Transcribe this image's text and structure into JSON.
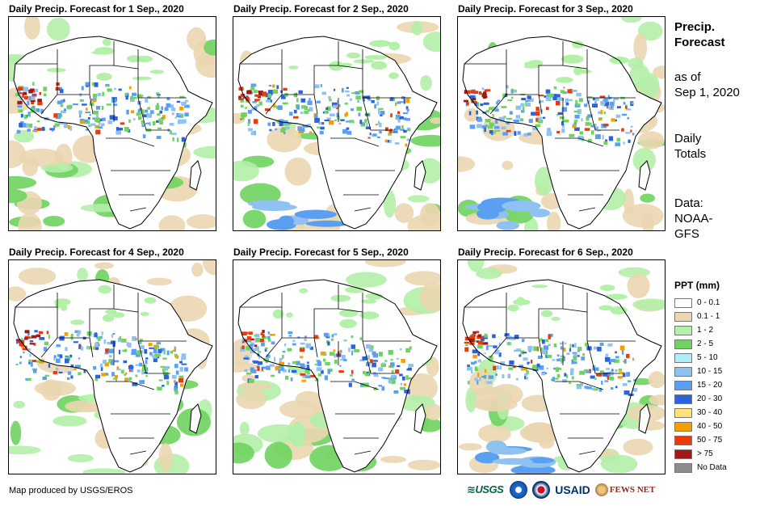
{
  "panels": [
    {
      "title": "Daily Precip. Forecast for 1 Sep., 2020"
    },
    {
      "title": "Daily Precip. Forecast for 2 Sep., 2020"
    },
    {
      "title": "Daily Precip. Forecast for 3 Sep., 2020"
    },
    {
      "title": "Daily Precip. Forecast for 4 Sep., 2020"
    },
    {
      "title": "Daily Precip. Forecast for 5 Sep., 2020"
    },
    {
      "title": "Daily Precip. Forecast for 6 Sep., 2020"
    }
  ],
  "sidebar": {
    "heading_line1": "Precip.",
    "heading_line2": "Forecast",
    "asof_line1": "as of",
    "asof_line2": "Sep 1, 2020",
    "totals_line1": "Daily",
    "totals_line2": "Totals",
    "data_line1": "Data:",
    "data_line2": "NOAA-",
    "data_line3": "GFS"
  },
  "legend": {
    "title": "PPT (mm)",
    "items": [
      {
        "label": "0 - 0.1",
        "color": "#ffffff"
      },
      {
        "label": "0.1 - 1",
        "color": "#ead6b0"
      },
      {
        "label": "1 - 2",
        "color": "#b3f0a8"
      },
      {
        "label": "2 - 5",
        "color": "#6fd35f"
      },
      {
        "label": "5 - 10",
        "color": "#b2ecf6"
      },
      {
        "label": "10 - 15",
        "color": "#8fc2f0"
      },
      {
        "label": "15 - 20",
        "color": "#5b9ff0"
      },
      {
        "label": "20 - 30",
        "color": "#2c63dc"
      },
      {
        "label": "30 - 40",
        "color": "#ffe27a"
      },
      {
        "label": "40 - 50",
        "color": "#f5a000"
      },
      {
        "label": "50 - 75",
        "color": "#e83a0a"
      },
      {
        "label": "> 75",
        "color": "#a01818"
      },
      {
        "label": "No Data",
        "color": "#8c8c8c"
      }
    ]
  },
  "footer": {
    "credit": "Map produced by USGS/EROS"
  },
  "logos": {
    "usgs": "≋USGS",
    "usaid": "USAID",
    "fews": "FEWS NET"
  }
}
